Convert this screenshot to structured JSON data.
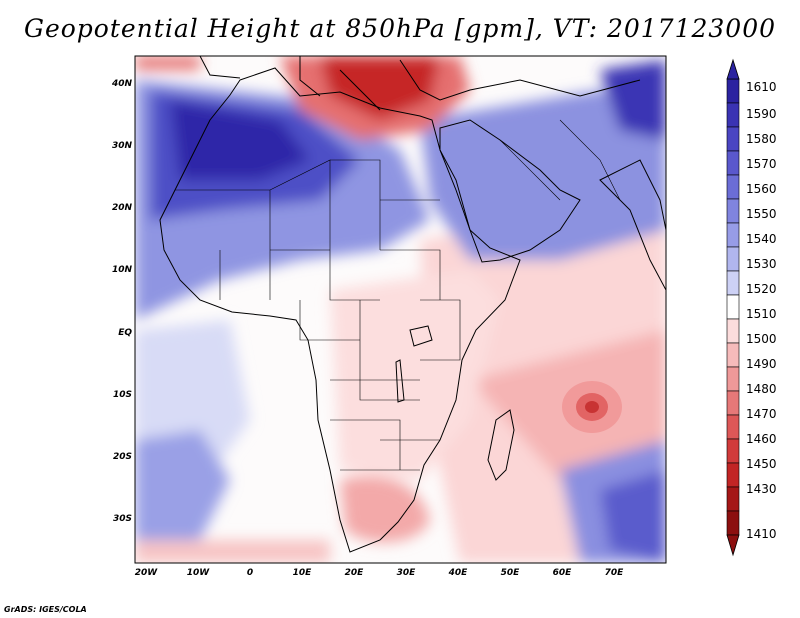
{
  "title": "Geopotential Height at 850hPa [gpm], VT: 2017123000",
  "variable": "Geopotential Height",
  "level": "850hPa",
  "units": "gpm",
  "valid_time": "2017123000",
  "map": {
    "lat_labels": [
      "40N",
      "30N",
      "20N",
      "10N",
      "EQ",
      "10S",
      "20S",
      "30S"
    ],
    "lon_labels": [
      "20W",
      "10W",
      "0",
      "10E",
      "20E",
      "30E",
      "40E",
      "50E",
      "60E",
      "70E"
    ],
    "lat_range": [
      -37,
      45
    ],
    "lon_range": [
      -22,
      80
    ]
  },
  "colorbar": {
    "labels": [
      "1610",
      "1590",
      "1580",
      "1570",
      "1560",
      "1550",
      "1540",
      "1530",
      "1520",
      "1510",
      "1500",
      "1490",
      "1480",
      "1470",
      "1460",
      "1450",
      "1430",
      "1410"
    ],
    "colors": [
      "#2b23a0",
      "#3a33b3",
      "#4a45c2",
      "#5a58cd",
      "#6b6dd6",
      "#8084df",
      "#979ce7",
      "#b1b6ee",
      "#cdd1f5",
      "#ffffff",
      "#fcdcdc",
      "#f6bbbb",
      "#ef9999",
      "#e67878",
      "#dd5757",
      "#d13b3b",
      "#c22525",
      "#a51717",
      "#8c0f0f"
    ]
  },
  "credit": "GrADS: IGES/COLA"
}
